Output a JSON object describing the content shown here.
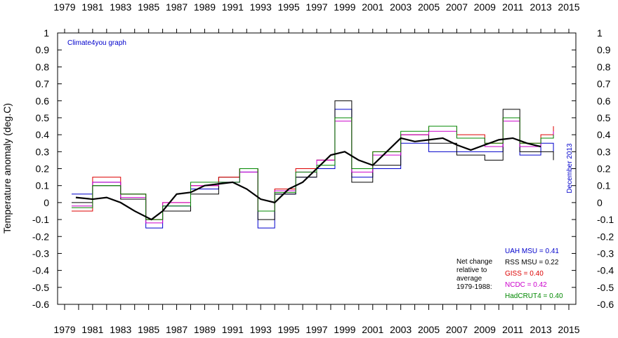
{
  "chart_data": {
    "type": "line",
    "title": "",
    "credit": "Climate4you graph",
    "ylabel": "Temperature anomaly (deg.C)",
    "date_label": "December 2013",
    "ylim": [
      -0.6,
      1.0
    ],
    "y_ticks": [
      "1",
      "0.9",
      "0.8",
      "0.7",
      "0.6",
      "0.5",
      "0.4",
      "0.3",
      "0.2",
      "0.1",
      "0",
      "-0.1",
      "-0.2",
      "-0.3",
      "-0.4",
      "-0.5",
      "-0.6"
    ],
    "xlim": [
      1979,
      2015
    ],
    "x_ticks": [
      "1979",
      "1981",
      "1983",
      "1985",
      "1987",
      "1989",
      "1991",
      "1993",
      "1995",
      "1997",
      "1999",
      "2001",
      "2003",
      "2005",
      "2007",
      "2009",
      "2011",
      "2013",
      "2015"
    ],
    "grid": false,
    "legend_title": [
      "Net change",
      "relative to",
      "average",
      "1979-1988:"
    ],
    "series": [
      {
        "name": "UAH MSU = 0.41",
        "color": "#0000cc",
        "x": [
          1979.5,
          1981,
          1983,
          1984.8,
          1986,
          1988,
          1990,
          1991.5,
          1992.8,
          1994,
          1995.5,
          1997,
          1998.3,
          1999.5,
          2001,
          2003,
          2005,
          2007,
          2009,
          2010.3,
          2011.5,
          2013,
          2013.9
        ],
        "values": [
          0.05,
          0.12,
          0.05,
          -0.15,
          -0.02,
          0.08,
          0.12,
          0.18,
          -0.15,
          0.05,
          0.15,
          0.2,
          0.55,
          0.15,
          0.2,
          0.35,
          0.3,
          0.3,
          0.3,
          0.5,
          0.28,
          0.35,
          0.3
        ]
      },
      {
        "name": "RSS MSU = 0.22",
        "color": "#000000",
        "x": [
          1979.5,
          1981,
          1983,
          1984.8,
          1986,
          1988,
          1990,
          1991.5,
          1992.8,
          1994,
          1995.5,
          1997,
          1998.3,
          1999.5,
          2001,
          2003,
          2005,
          2007,
          2009,
          2010.3,
          2011.5,
          2013,
          2013.9
        ],
        "values": [
          0.0,
          0.1,
          0.02,
          -0.1,
          -0.05,
          0.05,
          0.15,
          0.2,
          -0.1,
          0.05,
          0.15,
          0.25,
          0.6,
          0.12,
          0.22,
          0.4,
          0.35,
          0.28,
          0.25,
          0.55,
          0.3,
          0.3,
          0.25
        ]
      },
      {
        "name": "GISS = 0.40",
        "color": "#dd0000",
        "x": [
          1979.5,
          1981,
          1983,
          1984.8,
          1986,
          1988,
          1990,
          1991.5,
          1992.8,
          1994,
          1995.5,
          1997,
          1998.3,
          1999.5,
          2001,
          2003,
          2005,
          2007,
          2009,
          2010.3,
          2011.5,
          2013,
          2013.9
        ],
        "values": [
          -0.05,
          0.15,
          0.05,
          -0.1,
          0.0,
          0.1,
          0.15,
          0.2,
          -0.05,
          0.08,
          0.2,
          0.25,
          0.5,
          0.2,
          0.3,
          0.4,
          0.45,
          0.4,
          0.35,
          0.5,
          0.35,
          0.4,
          0.45
        ]
      },
      {
        "name": "NCDC = 0.42",
        "color": "#cc00cc",
        "x": [
          1979.5,
          1981,
          1983,
          1984.8,
          1986,
          1988,
          1990,
          1991.5,
          1992.8,
          1994,
          1995.5,
          1997,
          1998.3,
          1999.5,
          2001,
          2003,
          2005,
          2007,
          2009,
          2010.3,
          2011.5,
          2013,
          2013.9
        ],
        "values": [
          -0.02,
          0.12,
          0.03,
          -0.12,
          0.0,
          0.1,
          0.12,
          0.18,
          -0.05,
          0.07,
          0.18,
          0.25,
          0.48,
          0.18,
          0.28,
          0.4,
          0.42,
          0.38,
          0.33,
          0.48,
          0.33,
          0.38,
          0.42
        ]
      },
      {
        "name": "HadCRUT4 = 0.40",
        "color": "#008800",
        "x": [
          1979.5,
          1981,
          1983,
          1984.8,
          1986,
          1988,
          1990,
          1991.5,
          1992.8,
          1994,
          1995.5,
          1997,
          1998.3,
          1999.5,
          2001,
          2003,
          2005,
          2007,
          2009,
          2010.3,
          2011.5,
          2013,
          2013.9
        ],
        "values": [
          -0.03,
          0.1,
          0.05,
          -0.1,
          -0.02,
          0.12,
          0.12,
          0.2,
          -0.05,
          0.06,
          0.18,
          0.22,
          0.5,
          0.2,
          0.3,
          0.42,
          0.45,
          0.38,
          0.35,
          0.5,
          0.35,
          0.38,
          0.4
        ]
      }
    ],
    "running_mean": {
      "color": "#000000",
      "x": [
        1979.8,
        1981,
        1982,
        1983,
        1984,
        1985.2,
        1986,
        1987,
        1988,
        1989,
        1990,
        1991,
        1992,
        1993,
        1994,
        1995,
        1996,
        1997,
        1998,
        1999,
        2000,
        2001,
        2002,
        2003,
        2004,
        2005,
        2006,
        2007,
        2008,
        2009,
        2010,
        2011,
        2012,
        2013
      ],
      "values": [
        0.03,
        0.02,
        0.03,
        0.0,
        -0.05,
        -0.1,
        -0.05,
        0.05,
        0.06,
        0.1,
        0.11,
        0.12,
        0.08,
        0.02,
        0.0,
        0.08,
        0.12,
        0.2,
        0.28,
        0.3,
        0.25,
        0.22,
        0.3,
        0.38,
        0.36,
        0.37,
        0.38,
        0.34,
        0.31,
        0.34,
        0.37,
        0.38,
        0.35,
        0.33
      ]
    }
  }
}
